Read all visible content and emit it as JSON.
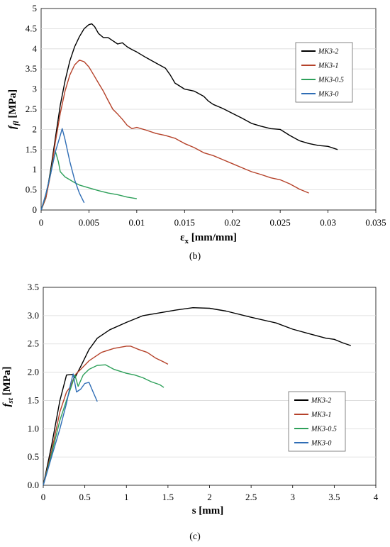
{
  "chart_data": [
    {
      "type": "line",
      "panel_label": "(b)",
      "ylabel_main": "f",
      "ylabel_sub": "fl",
      "ylabel_unit": " [MPa]",
      "xlabel": "εx [mm/mm]",
      "xlabel_main": "ε",
      "xlabel_sub": "x",
      "xlabel_unit": " [mm/mm]",
      "xlim": [
        0,
        0.035
      ],
      "ylim": [
        0,
        5
      ],
      "x_ticks": [
        0,
        0.005,
        0.01,
        0.015,
        0.02,
        0.025,
        0.03,
        0.035
      ],
      "x_tick_labels": [
        "0",
        "0.005",
        "0.01",
        "0.015",
        "0.02",
        "0.025",
        "0.03",
        "0.035"
      ],
      "y_ticks": [
        0,
        0.5,
        1,
        1.5,
        2,
        2.5,
        3,
        3.5,
        4,
        4.5,
        5
      ],
      "y_tick_labels": [
        "0",
        "0.5",
        "1",
        "1.5",
        "2",
        "2.5",
        "3",
        "3.5",
        "4",
        "4.5",
        "5"
      ],
      "grid": "horizontal",
      "legend_position": "right",
      "series": [
        {
          "name": "MK3-2",
          "color": "#000000",
          "points": [
            [
              0,
              0
            ],
            [
              0.0005,
              0.3
            ],
            [
              0.001,
              1.0
            ],
            [
              0.0015,
              1.8
            ],
            [
              0.002,
              2.6
            ],
            [
              0.0025,
              3.2
            ],
            [
              0.003,
              3.7
            ],
            [
              0.0035,
              4.05
            ],
            [
              0.004,
              4.3
            ],
            [
              0.0045,
              4.5
            ],
            [
              0.005,
              4.6
            ],
            [
              0.0053,
              4.62
            ],
            [
              0.0056,
              4.55
            ],
            [
              0.006,
              4.38
            ],
            [
              0.0065,
              4.28
            ],
            [
              0.007,
              4.28
            ],
            [
              0.0075,
              4.2
            ],
            [
              0.008,
              4.12
            ],
            [
              0.0085,
              4.15
            ],
            [
              0.009,
              4.05
            ],
            [
              0.0095,
              3.98
            ],
            [
              0.01,
              3.92
            ],
            [
              0.011,
              3.78
            ],
            [
              0.012,
              3.65
            ],
            [
              0.013,
              3.52
            ],
            [
              0.0135,
              3.35
            ],
            [
              0.014,
              3.15
            ],
            [
              0.015,
              3.0
            ],
            [
              0.016,
              2.95
            ],
            [
              0.017,
              2.82
            ],
            [
              0.0175,
              2.7
            ],
            [
              0.018,
              2.62
            ],
            [
              0.019,
              2.52
            ],
            [
              0.02,
              2.4
            ],
            [
              0.021,
              2.28
            ],
            [
              0.022,
              2.15
            ],
            [
              0.023,
              2.08
            ],
            [
              0.024,
              2.02
            ],
            [
              0.025,
              2.0
            ],
            [
              0.026,
              1.85
            ],
            [
              0.027,
              1.72
            ],
            [
              0.028,
              1.65
            ],
            [
              0.029,
              1.6
            ],
            [
              0.03,
              1.58
            ],
            [
              0.031,
              1.5
            ]
          ]
        },
        {
          "name": "MK3-1",
          "color": "#B5422A",
          "points": [
            [
              0,
              0
            ],
            [
              0.0005,
              0.3
            ],
            [
              0.001,
              0.9
            ],
            [
              0.0015,
              1.7
            ],
            [
              0.002,
              2.4
            ],
            [
              0.0025,
              2.95
            ],
            [
              0.003,
              3.35
            ],
            [
              0.0035,
              3.6
            ],
            [
              0.004,
              3.72
            ],
            [
              0.0045,
              3.68
            ],
            [
              0.005,
              3.55
            ],
            [
              0.0055,
              3.35
            ],
            [
              0.006,
              3.15
            ],
            [
              0.0065,
              2.95
            ],
            [
              0.007,
              2.72
            ],
            [
              0.0075,
              2.5
            ],
            [
              0.008,
              2.38
            ],
            [
              0.0085,
              2.25
            ],
            [
              0.009,
              2.1
            ],
            [
              0.0095,
              2.02
            ],
            [
              0.01,
              2.05
            ],
            [
              0.011,
              1.98
            ],
            [
              0.012,
              1.9
            ],
            [
              0.013,
              1.85
            ],
            [
              0.014,
              1.78
            ],
            [
              0.015,
              1.65
            ],
            [
              0.016,
              1.55
            ],
            [
              0.017,
              1.42
            ],
            [
              0.018,
              1.35
            ],
            [
              0.019,
              1.25
            ],
            [
              0.02,
              1.15
            ],
            [
              0.021,
              1.05
            ],
            [
              0.022,
              0.95
            ],
            [
              0.023,
              0.88
            ],
            [
              0.024,
              0.8
            ],
            [
              0.025,
              0.75
            ],
            [
              0.026,
              0.65
            ],
            [
              0.027,
              0.52
            ],
            [
              0.028,
              0.42
            ]
          ]
        },
        {
          "name": "MK3-0.5",
          "color": "#2EA05A",
          "points": [
            [
              0,
              0
            ],
            [
              0.0004,
              0.3
            ],
            [
              0.0008,
              0.7
            ],
            [
              0.0012,
              1.15
            ],
            [
              0.0015,
              1.45
            ],
            [
              0.0018,
              1.2
            ],
            [
              0.002,
              0.95
            ],
            [
              0.0025,
              0.82
            ],
            [
              0.003,
              0.75
            ],
            [
              0.0035,
              0.68
            ],
            [
              0.004,
              0.62
            ],
            [
              0.005,
              0.55
            ],
            [
              0.006,
              0.48
            ],
            [
              0.007,
              0.42
            ],
            [
              0.008,
              0.38
            ],
            [
              0.009,
              0.32
            ],
            [
              0.01,
              0.28
            ]
          ]
        },
        {
          "name": "MK3-0",
          "color": "#2F6DB5",
          "points": [
            [
              0,
              0
            ],
            [
              0.0005,
              0.4
            ],
            [
              0.001,
              0.9
            ],
            [
              0.0015,
              1.45
            ],
            [
              0.002,
              1.85
            ],
            [
              0.0022,
              2.02
            ],
            [
              0.0025,
              1.75
            ],
            [
              0.003,
              1.2
            ],
            [
              0.0035,
              0.75
            ],
            [
              0.004,
              0.42
            ],
            [
              0.0045,
              0.18
            ]
          ]
        }
      ]
    },
    {
      "type": "line",
      "panel_label": "(c)",
      "ylabel_main": "f",
      "ylabel_sub": "st",
      "ylabel_unit": " [MPa]",
      "xlabel": "s [mm]",
      "xlim": [
        0,
        4
      ],
      "ylim": [
        0,
        3.5
      ],
      "x_ticks": [
        0,
        0.5,
        1,
        1.5,
        2,
        2.5,
        3,
        3.5,
        4
      ],
      "x_tick_labels": [
        "0",
        "0.5",
        "1",
        "1.5",
        "2",
        "2.5",
        "3",
        "3.5",
        "4"
      ],
      "y_ticks": [
        0,
        0.5,
        1,
        1.5,
        2,
        2.5,
        3,
        3.5
      ],
      "y_tick_labels": [
        "0.0",
        "0.5",
        "1.0",
        "1.5",
        "2.0",
        "2.5",
        "3.0",
        "3.5"
      ],
      "grid": "horizontal",
      "legend_position": "right",
      "series": [
        {
          "name": "MK3-2",
          "color": "#000000",
          "points": [
            [
              0,
              0
            ],
            [
              0.1,
              0.7
            ],
            [
              0.2,
              1.5
            ],
            [
              0.28,
              1.95
            ],
            [
              0.35,
              1.96
            ],
            [
              0.38,
              1.9
            ],
            [
              0.45,
              2.1
            ],
            [
              0.55,
              2.4
            ],
            [
              0.65,
              2.6
            ],
            [
              0.8,
              2.75
            ],
            [
              1.0,
              2.88
            ],
            [
              1.2,
              3.0
            ],
            [
              1.4,
              3.05
            ],
            [
              1.6,
              3.1
            ],
            [
              1.8,
              3.14
            ],
            [
              2.0,
              3.13
            ],
            [
              2.2,
              3.08
            ],
            [
              2.5,
              2.97
            ],
            [
              2.8,
              2.87
            ],
            [
              3.0,
              2.76
            ],
            [
              3.2,
              2.68
            ],
            [
              3.4,
              2.6
            ],
            [
              3.5,
              2.58
            ],
            [
              3.6,
              2.52
            ],
            [
              3.7,
              2.47
            ]
          ]
        },
        {
          "name": "MK3-1",
          "color": "#B5422A",
          "points": [
            [
              0,
              0
            ],
            [
              0.1,
              0.6
            ],
            [
              0.2,
              1.3
            ],
            [
              0.28,
              1.65
            ],
            [
              0.33,
              1.75
            ],
            [
              0.38,
              1.95
            ],
            [
              0.45,
              2.05
            ],
            [
              0.55,
              2.2
            ],
            [
              0.7,
              2.35
            ],
            [
              0.85,
              2.42
            ],
            [
              1.0,
              2.46
            ],
            [
              1.05,
              2.46
            ],
            [
              1.15,
              2.4
            ],
            [
              1.25,
              2.35
            ],
            [
              1.35,
              2.25
            ],
            [
              1.45,
              2.18
            ],
            [
              1.5,
              2.14
            ]
          ]
        },
        {
          "name": "MK3-0.5",
          "color": "#2EA05A",
          "points": [
            [
              0,
              0
            ],
            [
              0.1,
              0.55
            ],
            [
              0.2,
              1.15
            ],
            [
              0.28,
              1.5
            ],
            [
              0.35,
              1.8
            ],
            [
              0.38,
              1.95
            ],
            [
              0.42,
              1.75
            ],
            [
              0.48,
              1.95
            ],
            [
              0.55,
              2.05
            ],
            [
              0.65,
              2.12
            ],
            [
              0.75,
              2.13
            ],
            [
              0.85,
              2.05
            ],
            [
              1.0,
              1.98
            ],
            [
              1.1,
              1.95
            ],
            [
              1.2,
              1.9
            ],
            [
              1.3,
              1.83
            ],
            [
              1.4,
              1.78
            ],
            [
              1.45,
              1.73
            ]
          ]
        },
        {
          "name": "MK3-0",
          "color": "#2F6DB5",
          "points": [
            [
              0,
              0
            ],
            [
              0.1,
              0.5
            ],
            [
              0.2,
              1.0
            ],
            [
              0.28,
              1.45
            ],
            [
              0.33,
              1.8
            ],
            [
              0.36,
              1.97
            ],
            [
              0.4,
              1.65
            ],
            [
              0.45,
              1.7
            ],
            [
              0.5,
              1.8
            ],
            [
              0.55,
              1.82
            ],
            [
              0.6,
              1.65
            ],
            [
              0.65,
              1.48
            ]
          ]
        }
      ]
    }
  ]
}
